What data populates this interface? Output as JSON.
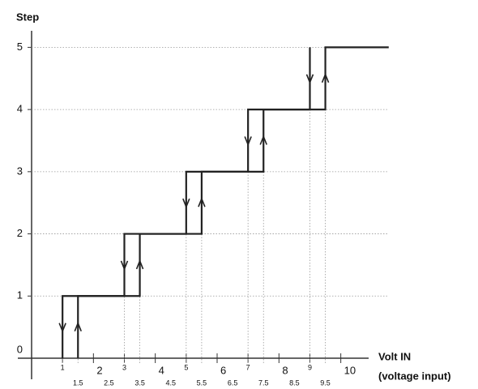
{
  "chart_data": {
    "type": "line",
    "title": "Step",
    "x_label": "Volt IN",
    "x_sublabel": "(voltage input)",
    "xlim": [
      0,
      10.9
    ],
    "ylim": [
      0,
      5.24
    ],
    "xticks": [
      1,
      2,
      3,
      4,
      5,
      6,
      7,
      8,
      9,
      10
    ],
    "xticks_minor": [
      1.5,
      2.5,
      3.5,
      4.5,
      5.5,
      6.5,
      7.5,
      8.5,
      9.5
    ],
    "yticks": [
      0,
      1,
      2,
      3,
      4,
      5
    ],
    "grid": true,
    "series": [
      {
        "color": "#222222",
        "x": [
          1.5,
          1.5,
          3.5,
          3.5,
          5.5,
          5.5,
          7.5,
          7.5,
          9.5,
          9.5,
          11.55
        ],
        "values": [
          0,
          1,
          1,
          2,
          2,
          3,
          3,
          4,
          4,
          5,
          5
        ]
      },
      {
        "color": "#222222",
        "x": [
          9,
          9,
          7,
          7,
          5,
          5,
          3,
          3,
          1,
          1
        ],
        "values": [
          5,
          4,
          4,
          3,
          3,
          2,
          2,
          1,
          1,
          0
        ]
      }
    ]
  }
}
